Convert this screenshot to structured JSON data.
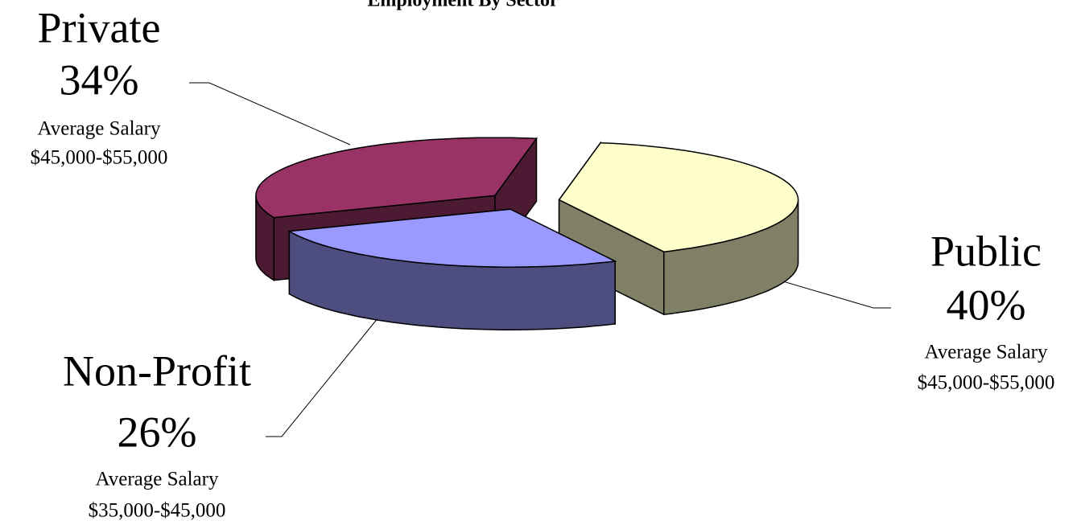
{
  "chart_data": {
    "type": "pie",
    "title": "Employment By Sector",
    "categories": [
      "Public",
      "Non-Profit",
      "Private"
    ],
    "values": [
      40,
      26,
      34
    ],
    "value_labels": [
      "40%",
      "26%",
      "34%"
    ],
    "colors": [
      "#ffffcc",
      "#9999ff",
      "#993366"
    ],
    "side_colors": [
      "#808066",
      "#4d4d80",
      "#4d1a33"
    ],
    "annotations": [
      {
        "label": "Average Salary",
        "range": "$45,000-$55,000"
      },
      {
        "label": "Average Salary",
        "range": "$35,000-$45,000"
      },
      {
        "label": "Average Salary",
        "range": "$45,000-$55,000"
      }
    ]
  }
}
